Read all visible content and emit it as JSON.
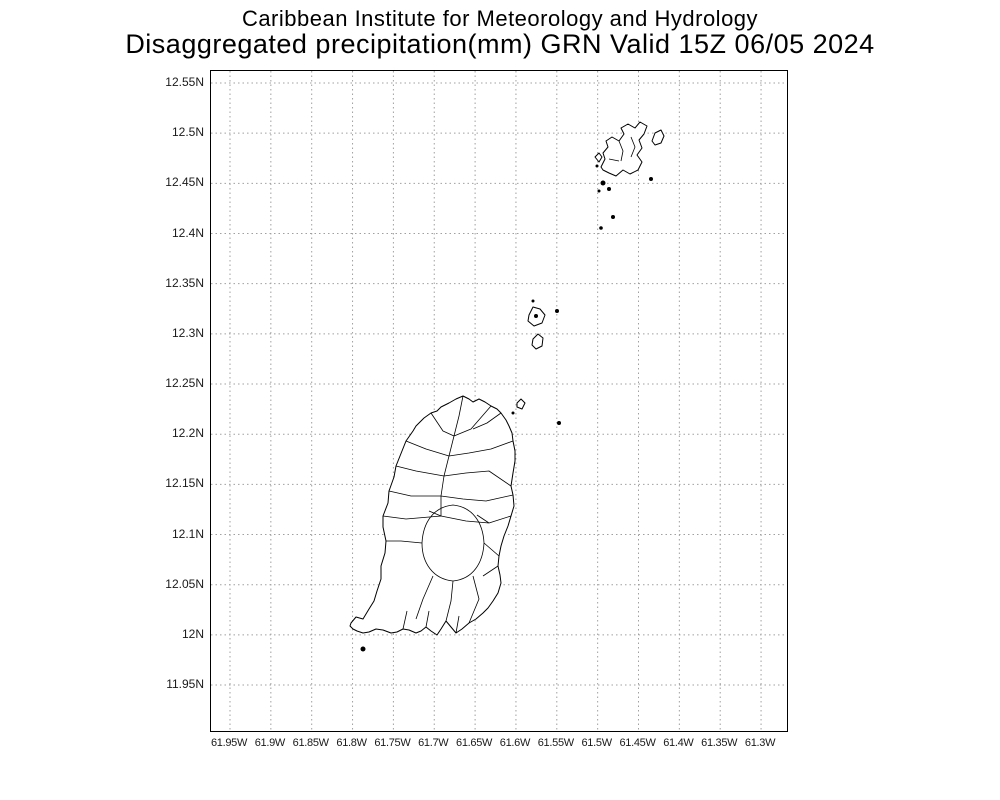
{
  "header": {
    "title_line1": "Caribbean Institute for Meteorology and Hydrology",
    "title_line2": "Disaggregated precipitation(mm) GRN Valid 15Z 06/05 2024"
  },
  "map": {
    "y_ticks": [
      "12.55N",
      "12.5N",
      "12.45N",
      "12.4N",
      "12.35N",
      "12.3N",
      "12.25N",
      "12.2N",
      "12.15N",
      "12.1N",
      "12.05N",
      "12N",
      "11.95N"
    ],
    "x_ticks": [
      "61.95W",
      "61.9W",
      "61.85W",
      "61.8W",
      "61.75W",
      "61.7W",
      "61.65W",
      "61.6W",
      "61.55W",
      "61.5W",
      "61.45W",
      "61.4W",
      "61.35W",
      "61.3W"
    ],
    "colors": {
      "grid": "#a0a0a0",
      "coast": "#000000",
      "frame": "#000000",
      "title_text": "#000000"
    }
  }
}
